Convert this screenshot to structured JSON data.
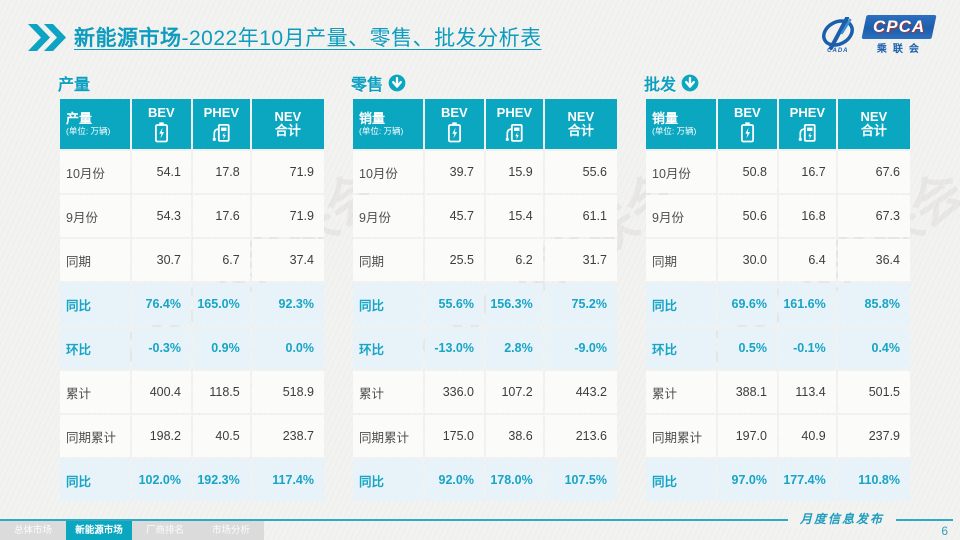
{
  "slide": {
    "title_bold": "新能源市场",
    "title_rest": "-2022年10月产量、零售、批发分析表",
    "footer_label": "月度信息发布",
    "page_number": "6"
  },
  "logo": {
    "cada_text": "CADA",
    "cpca_text": "CPCA",
    "cpca_sub": "乘联会",
    "swoosh_icon": "cada-swoosh-icon",
    "brand_blue": "#1B5EAB"
  },
  "colors": {
    "teal_accent": "#0BA6BF",
    "highlight_row_bg": "#E7F3F8",
    "highlight_text": "#17A4C6"
  },
  "watermark": "CPCA乘联会",
  "nav_tabs": [
    {
      "label": "总体市场",
      "active": false
    },
    {
      "label": "新能源市场",
      "active": true
    },
    {
      "label": "厂商排名",
      "active": false
    },
    {
      "label": "市场分析",
      "active": false
    }
  ],
  "tables": [
    {
      "section_label": "产量",
      "arrow_icon": null,
      "header": {
        "title": "产量",
        "unit": "(单位: 万辆)",
        "bev": "BEV",
        "phev": "PHEV",
        "nev_line1": "NEV",
        "nev_line2": "合计"
      },
      "rows": [
        {
          "label": "10月份",
          "bev": "54.1",
          "phev": "17.8",
          "nev": "71.9",
          "highlight": false
        },
        {
          "label": "9月份",
          "bev": "54.3",
          "phev": "17.6",
          "nev": "71.9",
          "highlight": false
        },
        {
          "label": "同期",
          "bev": "30.7",
          "phev": "6.7",
          "nev": "37.4",
          "highlight": false
        },
        {
          "label": "同比",
          "bev": "76.4%",
          "phev": "165.0%",
          "nev": "92.3%",
          "highlight": true
        },
        {
          "label": "环比",
          "bev": "-0.3%",
          "phev": "0.9%",
          "nev": "0.0%",
          "highlight": true
        },
        {
          "label": "累计",
          "bev": "400.4",
          "phev": "118.5",
          "nev": "518.9",
          "highlight": false
        },
        {
          "label": "同期累计",
          "bev": "198.2",
          "phev": "40.5",
          "nev": "238.7",
          "highlight": false
        },
        {
          "label": "同比",
          "bev": "102.0%",
          "phev": "192.3%",
          "nev": "117.4%",
          "highlight": true
        }
      ]
    },
    {
      "section_label": "零售",
      "arrow_icon": "circle-down-arrow",
      "header": {
        "title": "销量",
        "unit": "(单位: 万辆)",
        "bev": "BEV",
        "phev": "PHEV",
        "nev_line1": "NEV",
        "nev_line2": "合计"
      },
      "rows": [
        {
          "label": "10月份",
          "bev": "39.7",
          "phev": "15.9",
          "nev": "55.6",
          "highlight": false
        },
        {
          "label": "9月份",
          "bev": "45.7",
          "phev": "15.4",
          "nev": "61.1",
          "highlight": false
        },
        {
          "label": "同期",
          "bev": "25.5",
          "phev": "6.2",
          "nev": "31.7",
          "highlight": false
        },
        {
          "label": "同比",
          "bev": "55.6%",
          "phev": "156.3%",
          "nev": "75.2%",
          "highlight": true
        },
        {
          "label": "环比",
          "bev": "-13.0%",
          "phev": "2.8%",
          "nev": "-9.0%",
          "highlight": true
        },
        {
          "label": "累计",
          "bev": "336.0",
          "phev": "107.2",
          "nev": "443.2",
          "highlight": false
        },
        {
          "label": "同期累计",
          "bev": "175.0",
          "phev": "38.6",
          "nev": "213.6",
          "highlight": false
        },
        {
          "label": "同比",
          "bev": "92.0%",
          "phev": "178.0%",
          "nev": "107.5%",
          "highlight": true
        }
      ]
    },
    {
      "section_label": "批发",
      "arrow_icon": "circle-down-arrow",
      "header": {
        "title": "销量",
        "unit": "(单位: 万辆)",
        "bev": "BEV",
        "phev": "PHEV",
        "nev_line1": "NEV",
        "nev_line2": "合计"
      },
      "rows": [
        {
          "label": "10月份",
          "bev": "50.8",
          "phev": "16.7",
          "nev": "67.6",
          "highlight": false
        },
        {
          "label": "9月份",
          "bev": "50.6",
          "phev": "16.8",
          "nev": "67.3",
          "highlight": false
        },
        {
          "label": "同期",
          "bev": "30.0",
          "phev": "6.4",
          "nev": "36.4",
          "highlight": false
        },
        {
          "label": "同比",
          "bev": "69.6%",
          "phev": "161.6%",
          "nev": "85.8%",
          "highlight": true
        },
        {
          "label": "环比",
          "bev": "0.5%",
          "phev": "-0.1%",
          "nev": "0.4%",
          "highlight": true
        },
        {
          "label": "累计",
          "bev": "388.1",
          "phev": "113.4",
          "nev": "501.5",
          "highlight": false
        },
        {
          "label": "同期累计",
          "bev": "197.0",
          "phev": "40.9",
          "nev": "237.9",
          "highlight": false
        },
        {
          "label": "同比",
          "bev": "97.0%",
          "phev": "177.4%",
          "nev": "110.8%",
          "highlight": true
        }
      ]
    }
  ]
}
